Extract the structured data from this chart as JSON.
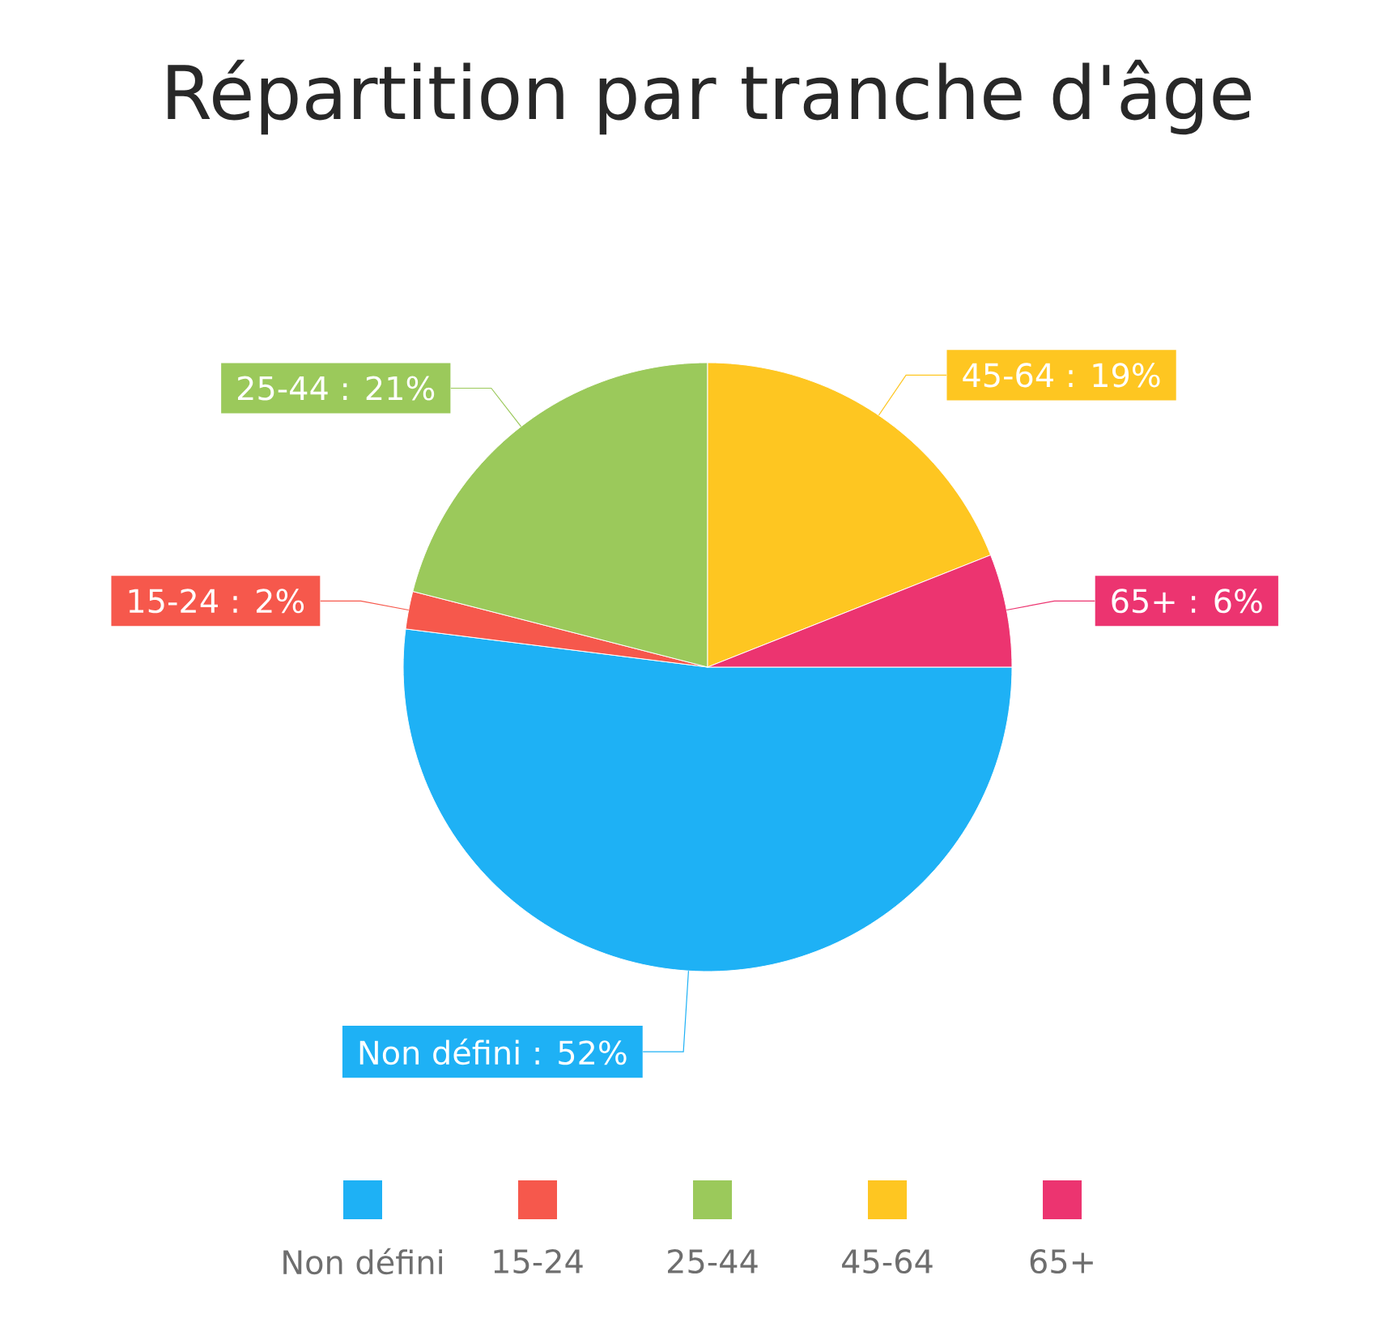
{
  "chart_data": {
    "type": "pie",
    "title": "Répartition par tranche d'âge",
    "categories": [
      "Non défini",
      "15-24",
      "25-44",
      "45-64",
      "65+"
    ],
    "values": [
      52,
      2,
      21,
      19,
      6
    ],
    "colors": [
      "#1eb1f5",
      "#f6584c",
      "#9bc95b",
      "#fec621",
      "#ec3470"
    ],
    "value_labels": [
      "Non défini : 52%",
      "15-24 : 2%",
      "25-44 : 21%",
      "45-64 : 19%",
      "65+ : 6%"
    ],
    "legend": "bottom"
  }
}
